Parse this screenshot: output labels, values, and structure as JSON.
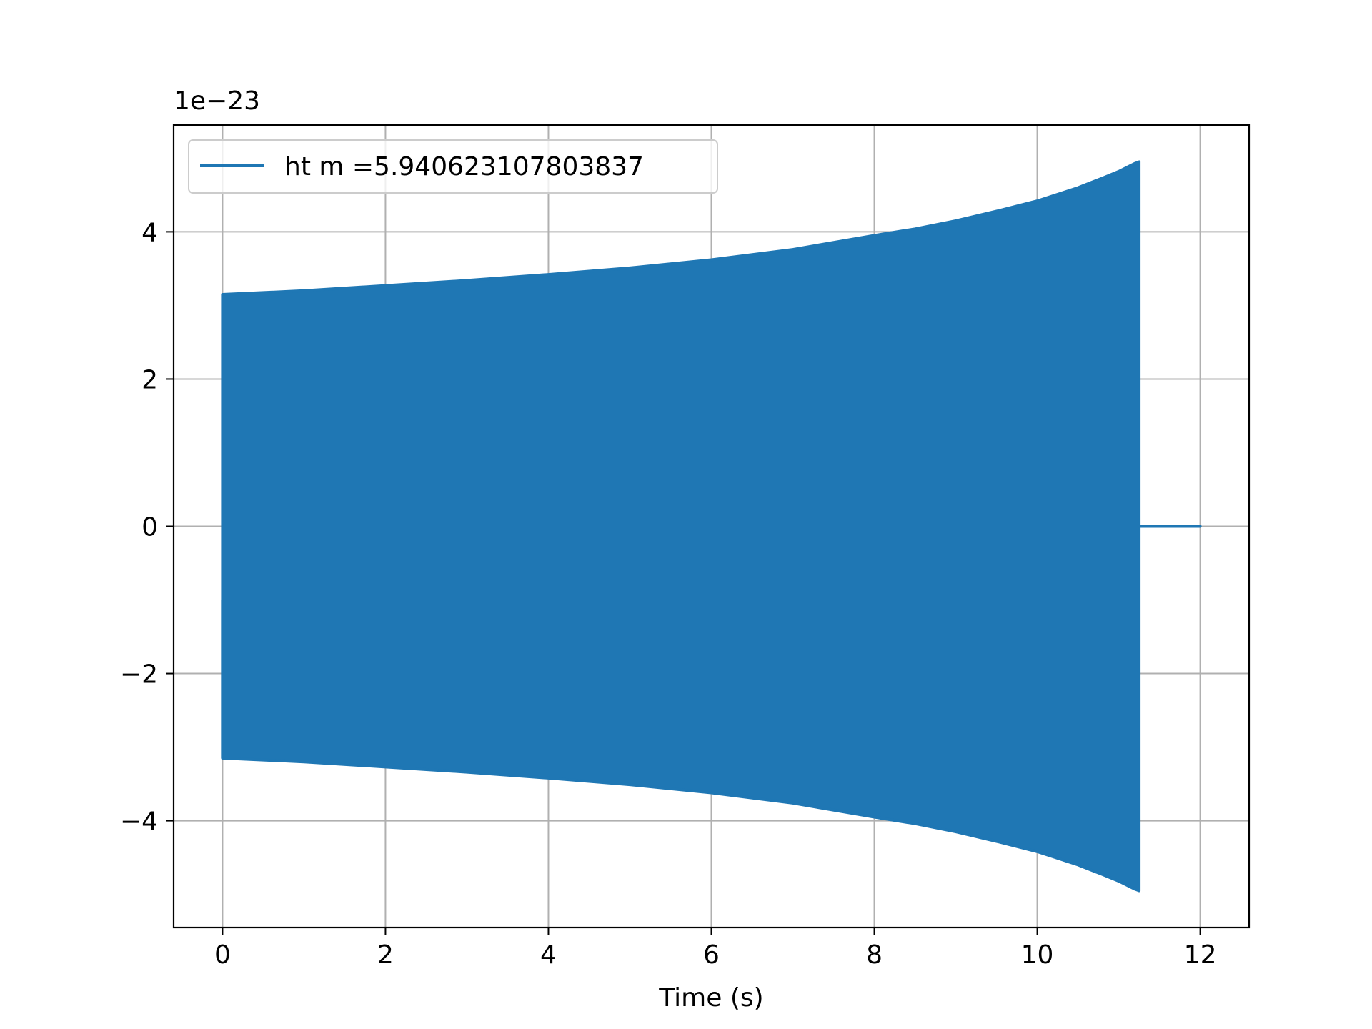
{
  "chart_data": {
    "type": "line",
    "title": "",
    "xlabel": "Time (s)",
    "ylabel": "",
    "y_offset_label": "1e−23",
    "y_scale_factor": 1e-23,
    "xlim": [
      -0.6,
      12.6
    ],
    "ylim": [
      -5.45,
      5.45
    ],
    "x_ticks": [
      0,
      2,
      4,
      6,
      8,
      10,
      12
    ],
    "x_tick_labels": [
      "0",
      "2",
      "4",
      "6",
      "8",
      "10",
      "12"
    ],
    "y_ticks": [
      -4,
      -2,
      0,
      2,
      4
    ],
    "y_tick_labels": [
      "−4",
      "−2",
      "0",
      "2",
      "4"
    ],
    "grid": true,
    "legend": {
      "position": "top-left"
    },
    "series": [
      {
        "name": "ht m =5.940623107803837",
        "color": "#1f77b4",
        "style": "dense-oscillation",
        "envelope": {
          "x": [
            0.0,
            1.0,
            2.0,
            3.0,
            4.0,
            5.0,
            6.0,
            7.0,
            8.0,
            8.5,
            9.0,
            9.5,
            10.0,
            10.5,
            10.8,
            11.0,
            11.2,
            11.25
          ],
          "upper": [
            3.15,
            3.2,
            3.27,
            3.34,
            3.42,
            3.51,
            3.62,
            3.76,
            3.95,
            4.04,
            4.15,
            4.28,
            4.42,
            4.6,
            4.73,
            4.82,
            4.93,
            4.95
          ],
          "lower": [
            -3.15,
            -3.2,
            -3.27,
            -3.34,
            -3.42,
            -3.51,
            -3.62,
            -3.76,
            -3.95,
            -4.04,
            -4.15,
            -4.28,
            -4.42,
            -4.6,
            -4.73,
            -4.82,
            -4.93,
            -4.95
          ]
        },
        "start_x": 0.0,
        "start_y": -1.0,
        "tail": {
          "x": [
            11.25,
            12.0
          ],
          "y": [
            0,
            0
          ]
        }
      }
    ]
  }
}
